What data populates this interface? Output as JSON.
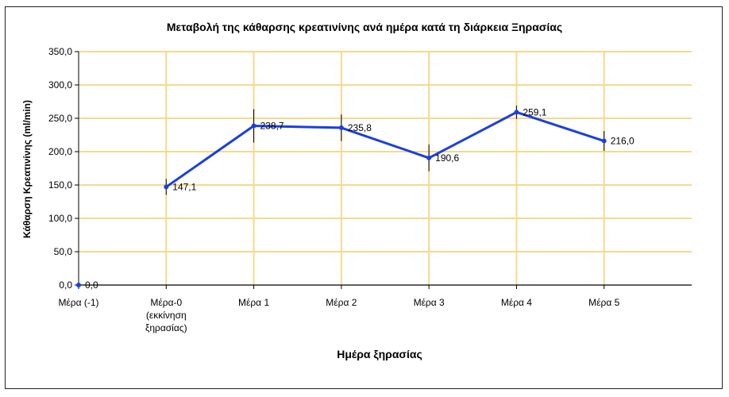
{
  "chart_data": {
    "type": "line",
    "title": "Μεταβολή της κάθαρσης κρεατινίνης ανά ημέρα κατά τη διάρκεια Ξηρασίας",
    "xlabel": "Ημέρα ξηρασίας",
    "ylabel": "Κάθαρση Κρεατινίνης (ml/min)",
    "categories": [
      [
        "Μέρα (-1)"
      ],
      [
        "Μέρα-0",
        "(εκκίνηση",
        "ξηρασίας)"
      ],
      [
        "Μέρα 1"
      ],
      [
        "Μέρα 2"
      ],
      [
        "Μέρα 3"
      ],
      [
        "Μέρα 4"
      ],
      [
        "Μέρα 5"
      ]
    ],
    "y_ticks": [
      "0,0",
      "50,0",
      "100,0",
      "150,0",
      "200,0",
      "250,0",
      "300,0",
      "350,0"
    ],
    "ylim": [
      0,
      350
    ],
    "grid": true,
    "series": [
      {
        "values": [
          0.0,
          147.1,
          238.7,
          235.8,
          190.6,
          259.1,
          216.0
        ],
        "labels": [
          "0,0",
          "147,1",
          "238,7",
          "235,8",
          "190,6",
          "259,1",
          "216,0"
        ],
        "error": [
          0,
          12,
          25,
          20,
          20,
          10,
          15
        ],
        "color": "#1a3fe0"
      }
    ],
    "colors": {
      "grid": "#f5d98b",
      "axis": "#000000",
      "line": "#1a3fe0"
    }
  }
}
